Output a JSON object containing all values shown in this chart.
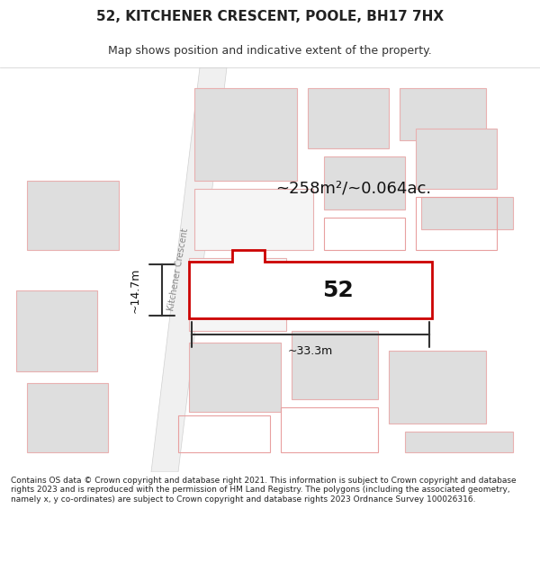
{
  "title_line1": "52, KITCHENER CRESCENT, POOLE, BH17 7HX",
  "title_line2": "Map shows position and indicative extent of the property.",
  "footer_text": "Contains OS data © Crown copyright and database right 2021. This information is subject to Crown copyright and database rights 2023 and is reproduced with the permission of HM Land Registry. The polygons (including the associated geometry, namely x, y co-ordinates) are subject to Crown copyright and database rights 2023 Ordnance Survey 100026316.",
  "area_label": "~258m²/~0.064ac.",
  "width_label": "~33.3m",
  "height_label": "~14.7m",
  "plot_number": "52",
  "street_label": "Kitchener Crescent",
  "map_bg": "#f8f8f8",
  "building_fill": "#e0e0e0",
  "building_stroke": "#e8b8b8",
  "highlight_fill": "#ffffff",
  "highlight_stroke": "#dd0000",
  "road_color": "#ffffff",
  "road_stroke": "#cccccc"
}
